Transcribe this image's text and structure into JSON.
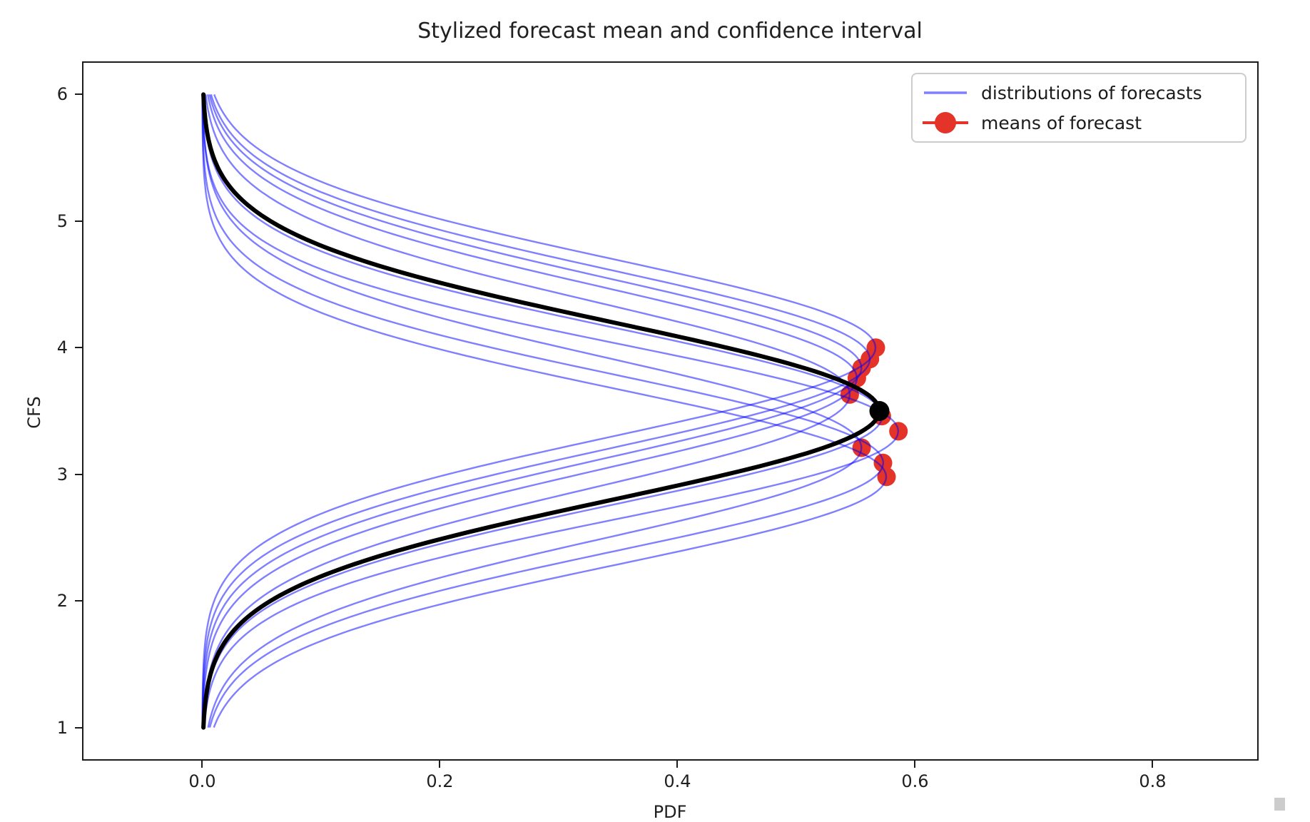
{
  "chart_data": {
    "type": "line",
    "title": "Stylized forecast mean and confidence interval",
    "xlabel": "PDF",
    "ylabel": "CFS",
    "xlim": [
      -0.1,
      0.888
    ],
    "ylim": [
      0.75,
      6.25
    ],
    "support": [
      1,
      6
    ],
    "grid": false,
    "curve_samples": 240,
    "xticks": [
      {
        "value": 0.0,
        "label": "0.0"
      },
      {
        "value": 0.2,
        "label": "0.2"
      },
      {
        "value": 0.4,
        "label": "0.4"
      },
      {
        "value": 0.6,
        "label": "0.6"
      },
      {
        "value": 0.8,
        "label": "0.8"
      }
    ],
    "yticks": [
      {
        "value": 1,
        "label": "1"
      },
      {
        "value": 2,
        "label": "2"
      },
      {
        "value": 3,
        "label": "3"
      },
      {
        "value": 4,
        "label": "4"
      },
      {
        "value": 5,
        "label": "5"
      },
      {
        "value": 6,
        "label": "6"
      }
    ],
    "forecast_distributions": {
      "legend_label": "distributions of forecasts",
      "color": "rgba(0,0,255,0.5)",
      "line_width": 2.4,
      "items": [
        {
          "mean": 4.0,
          "std": 0.704
        },
        {
          "mean": 3.91,
          "std": 0.71
        },
        {
          "mean": 3.84,
          "std": 0.719
        },
        {
          "mean": 3.76,
          "std": 0.724
        },
        {
          "mean": 3.63,
          "std": 0.732
        },
        {
          "mean": 3.46,
          "std": 0.697
        },
        {
          "mean": 3.34,
          "std": 0.681
        },
        {
          "mean": 3.21,
          "std": 0.719
        },
        {
          "mean": 3.09,
          "std": 0.696
        },
        {
          "mean": 2.98,
          "std": 0.693
        }
      ]
    },
    "forecast_means": {
      "legend_label": "means of forecast",
      "color": "#e43328",
      "marker_radius": 13,
      "points": [
        {
          "x": 0.567,
          "y": 4.0
        },
        {
          "x": 0.562,
          "y": 3.91
        },
        {
          "x": 0.555,
          "y": 3.84
        },
        {
          "x": 0.551,
          "y": 3.76
        },
        {
          "x": 0.545,
          "y": 3.63
        },
        {
          "x": 0.572,
          "y": 3.46
        },
        {
          "x": 0.586,
          "y": 3.34
        },
        {
          "x": 0.555,
          "y": 3.21
        },
        {
          "x": 0.573,
          "y": 3.09
        },
        {
          "x": 0.576,
          "y": 2.98
        }
      ]
    },
    "mean_distribution": {
      "mean": 3.5,
      "std": 0.7,
      "color": "#000000",
      "line_width": 6,
      "marker_radius": 14,
      "peak_marker": {
        "x": 0.57,
        "y": 3.5
      }
    },
    "legend": {
      "position": "upper right"
    }
  }
}
